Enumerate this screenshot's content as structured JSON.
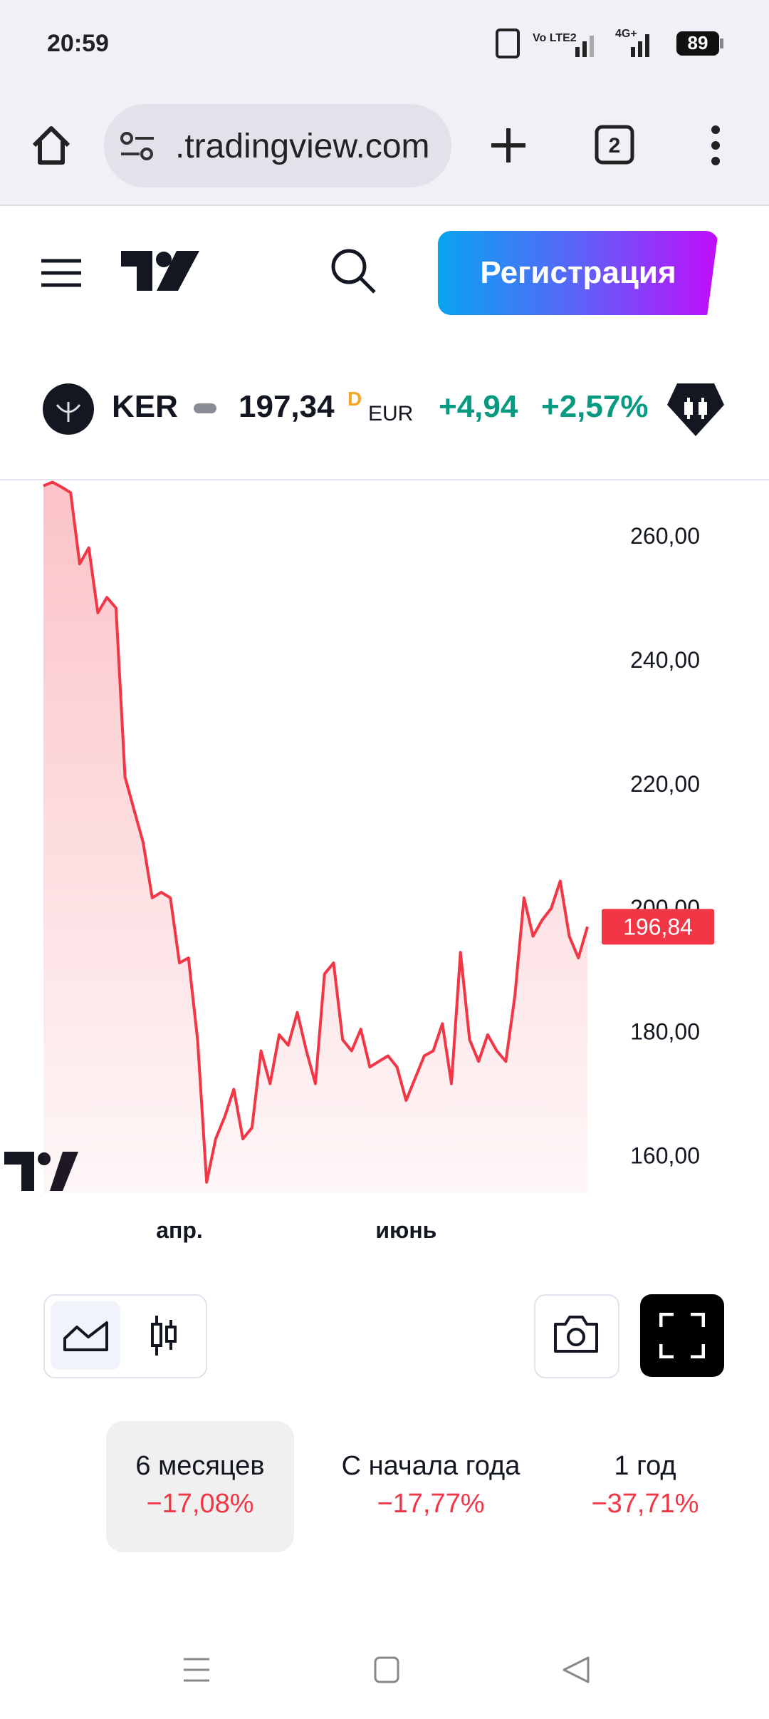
{
  "status_bar": {
    "time": "20:59",
    "volte": "Vo LTE2",
    "network": "4G+",
    "battery": "89"
  },
  "browser": {
    "url": ".tradingview.com",
    "tabs": "2"
  },
  "header": {
    "signup": "Регистрация"
  },
  "quote": {
    "symbol": "KER",
    "price": "197,34",
    "flag": "D",
    "currency": "EUR",
    "change": "+4,94",
    "change_pct": "+2,57%"
  },
  "chart_data": {
    "type": "area",
    "color": "#f23645",
    "categories": [
      null,
      null,
      null,
      null,
      null,
      null,
      null,
      null,
      null,
      null,
      null,
      null,
      null,
      null,
      null,
      "апр.",
      null,
      null,
      null,
      null,
      null,
      null,
      null,
      null,
      null,
      null,
      null,
      null,
      null,
      null,
      null,
      null,
      null,
      null,
      null,
      null,
      null,
      null,
      null,
      null,
      "июнь",
      null,
      null,
      null,
      null,
      null,
      null,
      null,
      null,
      null,
      null,
      null,
      null,
      null,
      null,
      null,
      null,
      null,
      null,
      null,
      null
    ],
    "values": [
      268,
      268.6,
      267.8,
      266.9,
      255.4,
      258,
      247.5,
      250,
      248.3,
      221,
      215.7,
      210.4,
      201.5,
      202.4,
      201.5,
      191,
      191.8,
      178.6,
      155.6,
      162.6,
      166.2,
      170.6,
      162.6,
      164.4,
      176.8,
      171.5,
      179.4,
      177.7,
      183,
      176.8,
      171.5,
      189.2,
      191,
      178.6,
      176.8,
      180.3,
      174.2,
      175.1,
      176,
      174.2,
      168.8,
      172.4,
      176,
      176.8,
      181.2,
      171.5,
      192.7,
      178.6,
      175.1,
      179.4,
      176.8,
      175.1,
      185.7,
      201.5,
      195.3,
      197.9,
      199.8,
      204.2,
      195.3,
      191.8,
      196.84
    ],
    "price_tag": {
      "value": 196.84,
      "label": "196,84"
    },
    "ylim": [
      153.8,
      269
    ],
    "yticks": [
      {
        "value": 160,
        "label": "160,00"
      },
      {
        "value": 180,
        "label": "180,00"
      },
      {
        "value": 200,
        "label": "200,00"
      },
      {
        "value": 220,
        "label": "220,00"
      },
      {
        "value": 240,
        "label": "240,00"
      },
      {
        "value": 260,
        "label": "260,00"
      }
    ],
    "grid": false
  },
  "periods": [
    {
      "label": "6 месяцев",
      "change": "−17,08%"
    },
    {
      "label": "С начала года",
      "change": "−17,77%"
    },
    {
      "label": "1 год",
      "change": "−37,71%"
    }
  ]
}
